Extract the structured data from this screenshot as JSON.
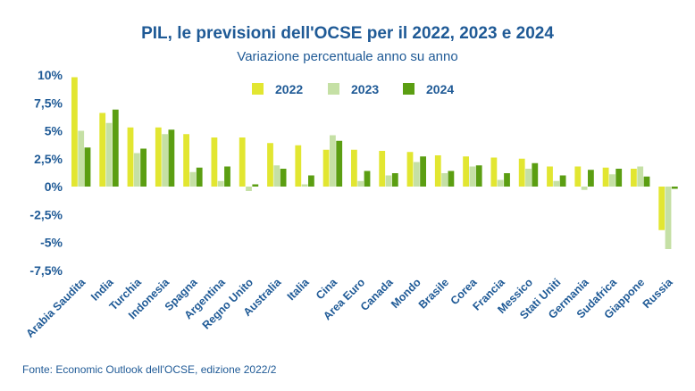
{
  "chart_data": {
    "type": "bar",
    "title": "PIL, le previsioni dell'OCSE per il 2022, 2023 e 2024",
    "subtitle": "Variazione percentuale anno su anno",
    "source": "Fonte: Economic Outlook dell'OCSE, edizione 2022/2",
    "categories": [
      "Arabia Saudita",
      "India",
      "Turchia",
      "Indonesia",
      "Spagna",
      "Argentina",
      "Regno Unito",
      "Australia",
      "Italia",
      "Cina",
      "Area Euro",
      "Canada",
      "Mondo",
      "Brasile",
      "Corea",
      "Francia",
      "Messico",
      "Stati Uniti",
      "Germania",
      "Sudafrica",
      "Giappone",
      "Russia"
    ],
    "series": [
      {
        "name": "2022",
        "color": "#e2e631",
        "values": [
          9.8,
          6.6,
          5.3,
          5.3,
          4.7,
          4.4,
          4.4,
          3.9,
          3.7,
          3.3,
          3.3,
          3.2,
          3.1,
          2.8,
          2.7,
          2.6,
          2.5,
          1.8,
          1.8,
          1.7,
          1.6,
          -3.9
        ]
      },
      {
        "name": "2023",
        "color": "#c5e0a5",
        "values": [
          5.0,
          5.7,
          3.0,
          4.7,
          1.3,
          0.5,
          -0.4,
          1.9,
          0.2,
          4.6,
          0.5,
          1.0,
          2.2,
          1.2,
          1.8,
          0.6,
          1.6,
          0.5,
          -0.3,
          1.1,
          1.8,
          -5.6
        ]
      },
      {
        "name": "2024",
        "color": "#5b9e12",
        "values": [
          3.5,
          6.9,
          3.4,
          5.1,
          1.7,
          1.8,
          0.2,
          1.6,
          1.0,
          4.1,
          1.4,
          1.2,
          2.7,
          1.4,
          1.9,
          1.2,
          2.1,
          1.0,
          1.5,
          1.6,
          0.9,
          -0.2
        ]
      }
    ],
    "yticks": [
      10,
      7.5,
      5,
      2.5,
      0,
      -2.5,
      -5,
      -7.5
    ],
    "ytick_labels": [
      "10%",
      "7,5%",
      "5%",
      "2,5%",
      "0%",
      "-2,5%",
      "-5%",
      "-7,5%"
    ],
    "ylim": [
      -7.5,
      10
    ],
    "legend": "top",
    "grid": false
  }
}
